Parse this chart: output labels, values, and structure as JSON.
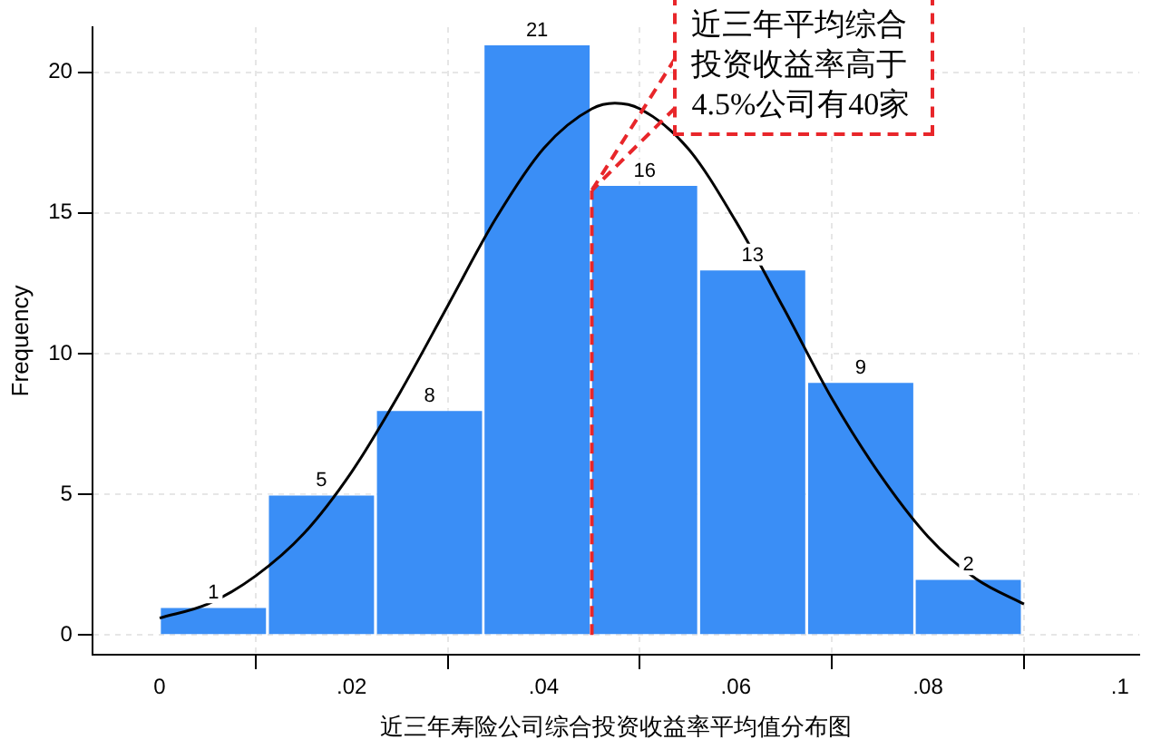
{
  "chart_data": {
    "type": "histogram",
    "xlabel": "近三年寿险公司综合投资收益率平均值分布图",
    "ylabel": "Frequency",
    "bins": [
      0,
      0.0112,
      0.0225,
      0.0337,
      0.0449,
      0.0561,
      0.0674,
      0.0786,
      0.0898
    ],
    "values": [
      1,
      5,
      8,
      21,
      16,
      13,
      9,
      2
    ],
    "color": "#3a8ef6",
    "value_labels": [
      "1",
      "5",
      "8",
      "21",
      "16",
      "13",
      "9",
      "2"
    ],
    "series": [
      {
        "type": "line",
        "color": "#000000",
        "x": [
          0,
          0.005,
          0.01,
          0.015,
          0.02,
          0.025,
          0.03,
          0.035,
          0.04,
          0.045,
          0.0474,
          0.05,
          0.055,
          0.06,
          0.065,
          0.07,
          0.075,
          0.08,
          0.085,
          0.09
        ],
        "values": [
          0.6,
          1.1,
          2.1,
          3.6,
          5.8,
          8.6,
          11.7,
          14.8,
          17.3,
          18.7,
          18.9,
          18.7,
          17.3,
          14.7,
          11.6,
          8.4,
          5.7,
          3.5,
          2.0,
          1.1
        ]
      }
    ],
    "xlim": [
      -0.007,
      0.102
    ],
    "xticks": [
      0,
      {
        "value": 0.02,
        "label": ".02"
      },
      {
        "value": 0.04,
        "label": ".04"
      },
      {
        "value": 0.06,
        "label": ".06"
      },
      {
        "value": 0.08,
        "label": ".08"
      },
      {
        "value": 0.1,
        "label": ".1"
      }
    ],
    "ylim": [
      -0.7,
      21.6
    ],
    "yticks": [
      0,
      5,
      10,
      15,
      20
    ],
    "grid": true,
    "ref_lines": [
      {
        "axis": "x",
        "value": 0.045,
        "color": "#e8262a",
        "line_style": "dashed",
        "label": "近三年平均综合投资收益率高于4.5%公司有40家"
      }
    ]
  }
}
